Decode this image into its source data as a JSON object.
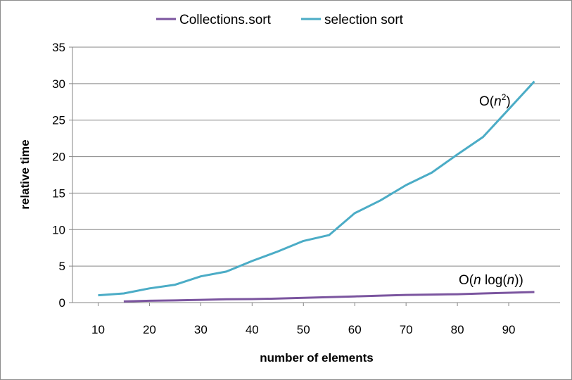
{
  "chart_data": {
    "type": "line",
    "title": "",
    "xlabel": "number of elements",
    "ylabel": "relative time",
    "xlim": [
      5,
      100
    ],
    "ylim": [
      0,
      35
    ],
    "x_ticks": [
      10,
      20,
      30,
      40,
      50,
      60,
      70,
      80,
      90
    ],
    "y_ticks": [
      0,
      5,
      10,
      15,
      20,
      25,
      30,
      35
    ],
    "grid": "horizontal",
    "legend": "top",
    "series": [
      {
        "name": "Collections.sort",
        "color": "#7b559f",
        "x": [
          15,
          20,
          25,
          30,
          35,
          40,
          45,
          50,
          55,
          60,
          65,
          70,
          75,
          80,
          85,
          90,
          95
        ],
        "y": [
          0.15,
          0.25,
          0.3,
          0.38,
          0.45,
          0.48,
          0.55,
          0.65,
          0.75,
          0.85,
          0.95,
          1.05,
          1.1,
          1.15,
          1.25,
          1.35,
          1.45
        ]
      },
      {
        "name": "selection sort",
        "color": "#4bacc6",
        "x": [
          10,
          15,
          20,
          25,
          30,
          35,
          40,
          45,
          50,
          55,
          60,
          65,
          70,
          75,
          80,
          85,
          90,
          95
        ],
        "y": [
          1.0,
          1.25,
          1.95,
          2.45,
          3.6,
          4.25,
          5.7,
          7.0,
          8.45,
          9.25,
          12.25,
          14.0,
          16.1,
          17.8,
          20.3,
          22.7,
          26.5,
          30.3
        ]
      }
    ],
    "annotations": [
      {
        "text": "O(n2)",
        "series": "selection sort"
      },
      {
        "text": "O(n log(n))",
        "series": "Collections.sort"
      }
    ]
  },
  "labels": {
    "anno_n2_prefix": "O(",
    "anno_n2_var": "n",
    "anno_n2_exp": "2",
    "anno_n2_suffix": ")",
    "anno_nlogn_prefix": "O(",
    "anno_nlogn_var1": "n",
    "anno_nlogn_mid": " log(",
    "anno_nlogn_var2": "n",
    "anno_nlogn_suffix": "))"
  }
}
